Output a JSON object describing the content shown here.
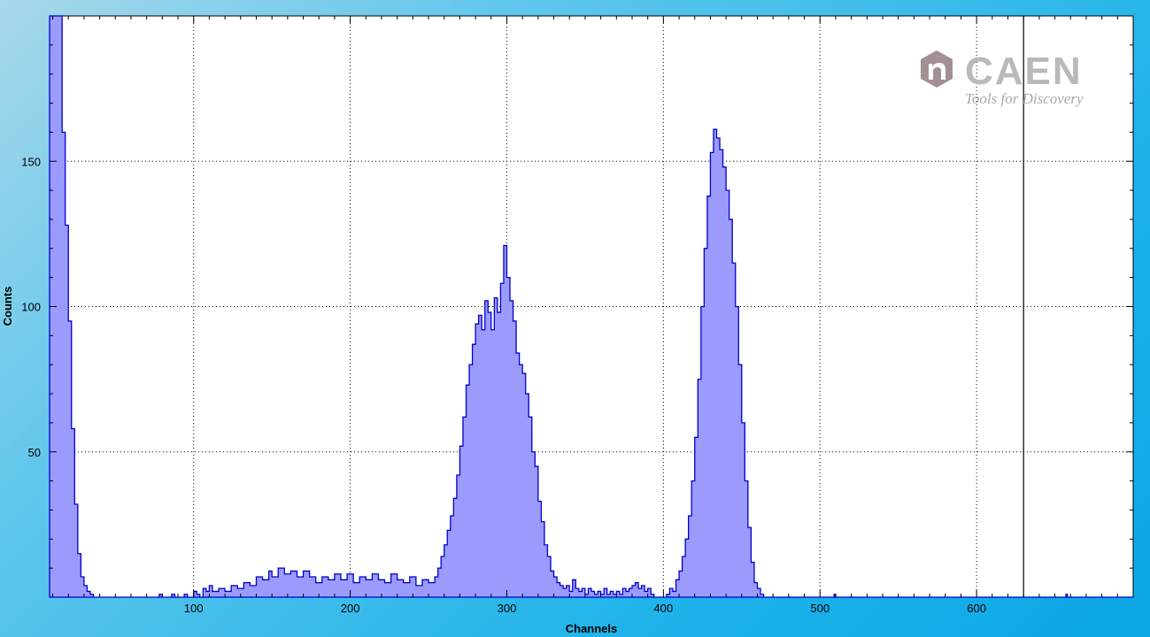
{
  "window": {
    "background_gradient": [
      "#a8d8ea",
      "#0ca6e6"
    ]
  },
  "logo": {
    "name": "CAEN",
    "tagline": "Tools for Discovery",
    "icon": "caen-n-icon"
  },
  "chart_data": {
    "type": "histogram",
    "xlabel": "Channels",
    "ylabel": "Counts",
    "xlim": [
      8,
      700
    ],
    "ylim": [
      0,
      200
    ],
    "xticks": [
      100,
      200,
      300,
      400,
      500,
      600
    ],
    "yticks": [
      50,
      100,
      150
    ],
    "grid": true,
    "fill_color": "#9b9bfd",
    "line_color": "#0000cc",
    "marker_line_x": 630,
    "series": [
      {
        "points": [
          [
            8,
            200
          ],
          [
            14,
            200
          ],
          [
            16,
            160
          ],
          [
            18,
            128
          ],
          [
            20,
            95
          ],
          [
            22,
            58
          ],
          [
            24,
            32
          ],
          [
            26,
            15
          ],
          [
            28,
            7
          ],
          [
            30,
            4
          ],
          [
            32,
            2
          ],
          [
            34,
            1
          ],
          [
            36,
            0
          ],
          [
            60,
            0
          ],
          [
            76,
            0
          ],
          [
            78,
            1
          ],
          [
            80,
            0
          ],
          [
            86,
            1
          ],
          [
            88,
            0
          ],
          [
            94,
            1
          ],
          [
            96,
            0
          ],
          [
            100,
            2
          ],
          [
            102,
            1
          ],
          [
            104,
            0
          ],
          [
            106,
            3
          ],
          [
            108,
            2
          ],
          [
            110,
            4
          ],
          [
            112,
            2
          ],
          [
            116,
            3
          ],
          [
            120,
            2
          ],
          [
            124,
            4
          ],
          [
            128,
            3
          ],
          [
            132,
            5
          ],
          [
            136,
            4
          ],
          [
            140,
            7
          ],
          [
            144,
            6
          ],
          [
            148,
            9
          ],
          [
            150,
            7
          ],
          [
            154,
            10
          ],
          [
            158,
            8
          ],
          [
            162,
            9
          ],
          [
            166,
            7
          ],
          [
            170,
            9
          ],
          [
            174,
            7
          ],
          [
            178,
            5
          ],
          [
            182,
            7
          ],
          [
            186,
            6
          ],
          [
            190,
            8
          ],
          [
            194,
            6
          ],
          [
            198,
            8
          ],
          [
            202,
            5
          ],
          [
            206,
            7
          ],
          [
            210,
            6
          ],
          [
            214,
            8
          ],
          [
            218,
            6
          ],
          [
            222,
            5
          ],
          [
            226,
            8
          ],
          [
            230,
            6
          ],
          [
            234,
            5
          ],
          [
            238,
            7
          ],
          [
            242,
            4
          ],
          [
            246,
            6
          ],
          [
            250,
            5
          ],
          [
            254,
            7
          ],
          [
            256,
            10
          ],
          [
            258,
            14
          ],
          [
            260,
            18
          ],
          [
            262,
            23
          ],
          [
            264,
            28
          ],
          [
            266,
            34
          ],
          [
            268,
            42
          ],
          [
            270,
            52
          ],
          [
            272,
            62
          ],
          [
            274,
            73
          ],
          [
            276,
            80
          ],
          [
            278,
            87
          ],
          [
            280,
            94
          ],
          [
            282,
            97
          ],
          [
            284,
            92
          ],
          [
            286,
            102
          ],
          [
            288,
            98
          ],
          [
            290,
            92
          ],
          [
            292,
            103
          ],
          [
            294,
            98
          ],
          [
            296,
            108
          ],
          [
            298,
            121
          ],
          [
            300,
            110
          ],
          [
            302,
            102
          ],
          [
            304,
            95
          ],
          [
            306,
            84
          ],
          [
            308,
            80
          ],
          [
            310,
            77
          ],
          [
            312,
            70
          ],
          [
            314,
            62
          ],
          [
            316,
            50
          ],
          [
            318,
            45
          ],
          [
            320,
            33
          ],
          [
            322,
            26
          ],
          [
            324,
            18
          ],
          [
            326,
            14
          ],
          [
            328,
            9
          ],
          [
            330,
            7
          ],
          [
            332,
            5
          ],
          [
            334,
            4
          ],
          [
            336,
            3
          ],
          [
            338,
            4
          ],
          [
            340,
            2
          ],
          [
            342,
            6
          ],
          [
            344,
            3
          ],
          [
            346,
            2
          ],
          [
            348,
            3
          ],
          [
            350,
            1
          ],
          [
            352,
            3
          ],
          [
            354,
            2
          ],
          [
            356,
            1
          ],
          [
            358,
            2
          ],
          [
            360,
            1
          ],
          [
            362,
            3
          ],
          [
            364,
            1
          ],
          [
            366,
            2
          ],
          [
            368,
            1
          ],
          [
            370,
            2
          ],
          [
            372,
            1
          ],
          [
            374,
            3
          ],
          [
            376,
            2
          ],
          [
            378,
            3
          ],
          [
            380,
            4
          ],
          [
            382,
            5
          ],
          [
            384,
            3
          ],
          [
            386,
            4
          ],
          [
            388,
            2
          ],
          [
            390,
            3
          ],
          [
            392,
            1
          ],
          [
            394,
            0
          ],
          [
            400,
            0
          ],
          [
            402,
            1
          ],
          [
            404,
            3
          ],
          [
            406,
            2
          ],
          [
            408,
            6
          ],
          [
            410,
            9
          ],
          [
            412,
            14
          ],
          [
            414,
            20
          ],
          [
            416,
            28
          ],
          [
            418,
            40
          ],
          [
            420,
            55
          ],
          [
            422,
            75
          ],
          [
            424,
            100
          ],
          [
            426,
            120
          ],
          [
            428,
            138
          ],
          [
            430,
            153
          ],
          [
            432,
            161
          ],
          [
            434,
            158
          ],
          [
            436,
            154
          ],
          [
            438,
            148
          ],
          [
            440,
            140
          ],
          [
            442,
            130
          ],
          [
            444,
            115
          ],
          [
            446,
            100
          ],
          [
            448,
            80
          ],
          [
            450,
            60
          ],
          [
            452,
            40
          ],
          [
            454,
            24
          ],
          [
            456,
            12
          ],
          [
            458,
            5
          ],
          [
            460,
            3
          ],
          [
            462,
            1
          ],
          [
            464,
            0
          ],
          [
            508,
            0
          ],
          [
            509,
            1
          ],
          [
            510,
            0
          ],
          [
            656,
            0
          ],
          [
            657,
            1
          ],
          [
            658,
            0
          ],
          [
            700,
            0
          ]
        ]
      }
    ]
  }
}
